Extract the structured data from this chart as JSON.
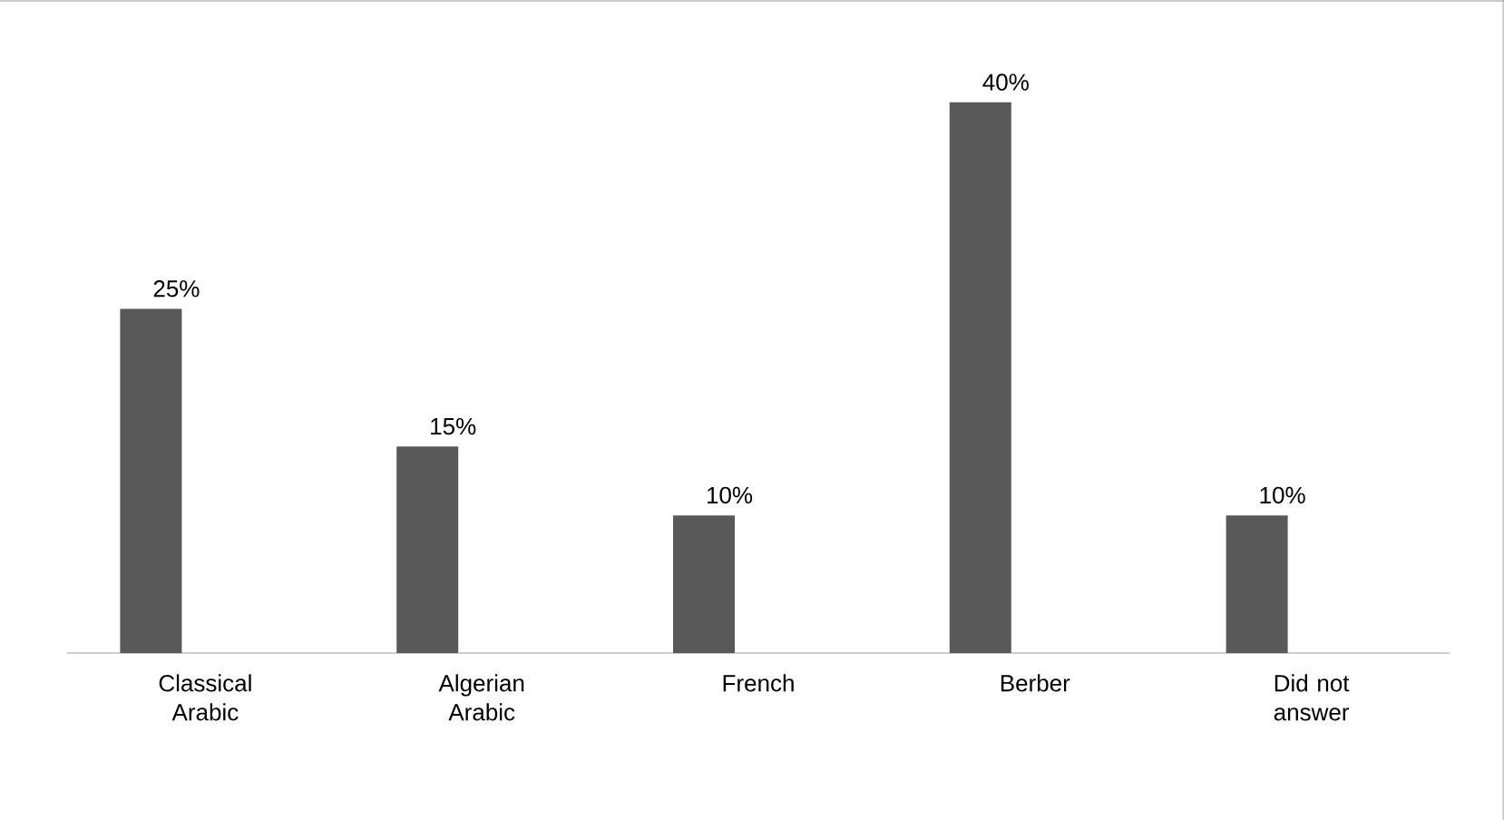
{
  "chart_data": {
    "type": "bar",
    "categories": [
      "Classical Arabic",
      "Algerian Arabic",
      "French",
      "Berber",
      "Did not answer"
    ],
    "values": [
      25,
      15,
      10,
      40,
      10
    ],
    "value_labels": [
      "25%",
      "15%",
      "10%",
      "40%",
      "10%"
    ],
    "color": "#595959"
  }
}
